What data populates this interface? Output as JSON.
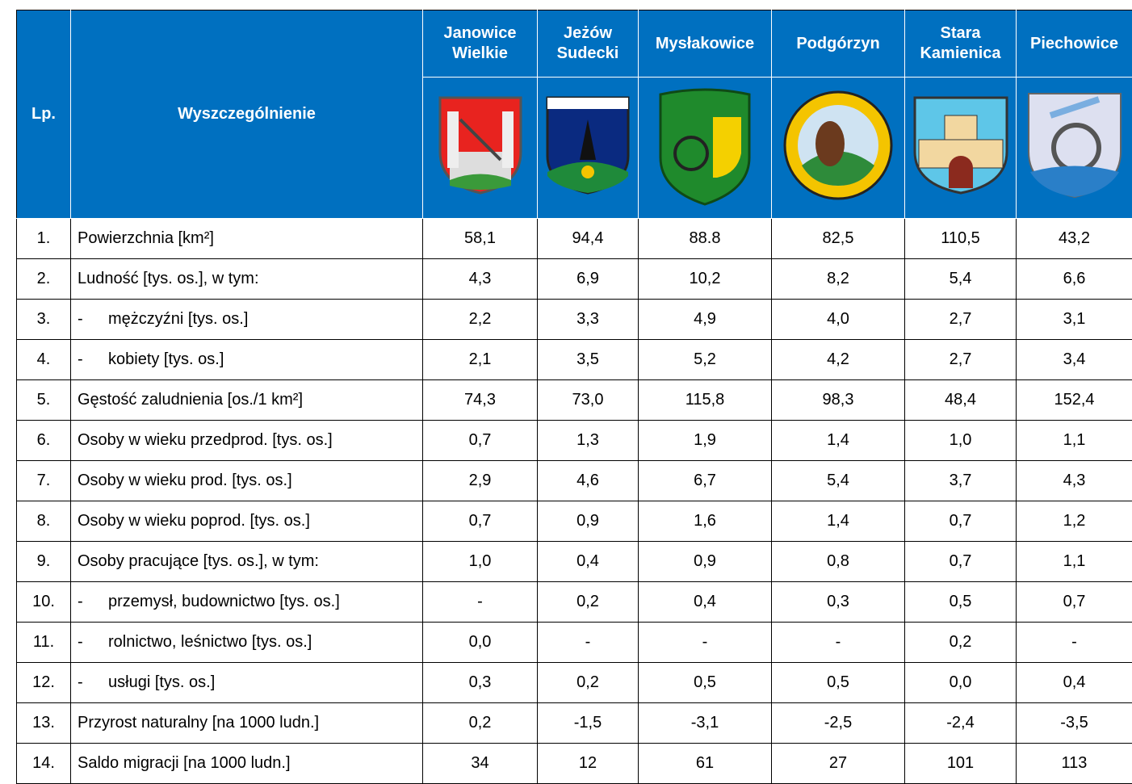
{
  "table": {
    "header": {
      "lp": "Lp.",
      "item": "Wyszczególnienie",
      "columns": [
        "Janowice Wielkie",
        "Jeżów Sudecki",
        "Mysłakowice",
        "Podgórzyn",
        "Stara Kamienica",
        "Piechowice"
      ]
    },
    "rows": [
      {
        "lp": "1.",
        "label": "Powierzchnia [km²]",
        "values": [
          "58,1",
          "94,4",
          "88.8",
          "82,5",
          "110,5",
          "43,2"
        ]
      },
      {
        "lp": "2.",
        "label": "Ludność [tys. os.], w tym:",
        "values": [
          "4,3",
          "6,9",
          "10,2",
          "8,2",
          "5,4",
          "6,6"
        ]
      },
      {
        "lp": "3.",
        "marker": "-",
        "label": "mężczyźni [tys. os.]",
        "values": [
          "2,2",
          "3,3",
          "4,9",
          "4,0",
          "2,7",
          "3,1"
        ]
      },
      {
        "lp": "4.",
        "marker": "-",
        "label": "kobiety [tys. os.]",
        "values": [
          "2,1",
          "3,5",
          "5,2",
          "4,2",
          "2,7",
          "3,4"
        ]
      },
      {
        "lp": "5.",
        "label": "Gęstość zaludnienia [os./1 km²]",
        "values": [
          "74,3",
          "73,0",
          "115,8",
          "98,3",
          "48,4",
          "152,4"
        ]
      },
      {
        "lp": "6.",
        "label": "Osoby w wieku przedprod. [tys. os.]",
        "values": [
          "0,7",
          "1,3",
          "1,9",
          "1,4",
          "1,0",
          "1,1"
        ]
      },
      {
        "lp": "7.",
        "label": "Osoby w wieku prod. [tys. os.]",
        "values": [
          "2,9",
          "4,6",
          "6,7",
          "5,4",
          "3,7",
          "4,3"
        ]
      },
      {
        "lp": "8.",
        "label": "Osoby w wieku poprod. [tys. os.]",
        "values": [
          "0,7",
          "0,9",
          "1,6",
          "1,4",
          "0,7",
          "1,2"
        ]
      },
      {
        "lp": "9.",
        "label": "Osoby pracujące [tys. os.], w tym:",
        "values": [
          "1,0",
          "0,4",
          "0,9",
          "0,8",
          "0,7",
          "1,1"
        ]
      },
      {
        "lp": "10.",
        "marker": "-",
        "label": "przemysł, budownictwo [tys. os.]",
        "values": [
          "-",
          "0,2",
          "0,4",
          "0,3",
          "0,5",
          "0,7"
        ]
      },
      {
        "lp": "11.",
        "marker": "-",
        "label": "rolnictwo, leśnictwo [tys. os.]",
        "values": [
          "0,0",
          "-",
          "-",
          "-",
          "0,2",
          "-"
        ]
      },
      {
        "lp": "12.",
        "marker": "-",
        "label": "usługi [tys. os.]",
        "values": [
          "0,3",
          "0,2",
          "0,5",
          "0,5",
          "0,0",
          "0,4"
        ]
      },
      {
        "lp": "13.",
        "label": "Przyrost naturalny [na 1000 ludn.]",
        "values": [
          "0,2",
          "-1,5",
          "-3,1",
          "-2,5",
          "-2,4",
          "-3,5"
        ]
      },
      {
        "lp": "14.",
        "label": "Saldo migracji [na 1000 ludn.]",
        "values": [
          "34",
          "12",
          "61",
          "27",
          "101",
          "113"
        ]
      }
    ]
  }
}
